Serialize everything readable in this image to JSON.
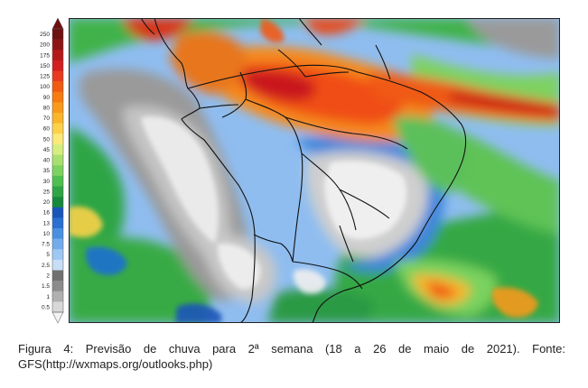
{
  "legend": {
    "levels": [
      {
        "label": "250",
        "color": "#6e1010"
      },
      {
        "label": "200",
        "color": "#8e1414"
      },
      {
        "label": "175",
        "color": "#b51818"
      },
      {
        "label": "150",
        "color": "#d21f1f"
      },
      {
        "label": "125",
        "color": "#e83a1f"
      },
      {
        "label": "100",
        "color": "#f25a12"
      },
      {
        "label": "90",
        "color": "#f77b10"
      },
      {
        "label": "80",
        "color": "#fa9a1a"
      },
      {
        "label": "70",
        "color": "#fbb52a"
      },
      {
        "label": "60",
        "color": "#fdd24a"
      },
      {
        "label": "50",
        "color": "#fbe97a"
      },
      {
        "label": "45",
        "color": "#d6ee80"
      },
      {
        "label": "40",
        "color": "#a8e070"
      },
      {
        "label": "35",
        "color": "#7dd260"
      },
      {
        "label": "30",
        "color": "#4fbf4f"
      },
      {
        "label": "25",
        "color": "#2ea545"
      },
      {
        "label": "20",
        "color": "#168a3a"
      },
      {
        "label": "16",
        "color": "#1a55b8"
      },
      {
        "label": "13",
        "color": "#2a70d0"
      },
      {
        "label": "10",
        "color": "#4a90e0"
      },
      {
        "label": "7.5",
        "color": "#72acec"
      },
      {
        "label": "5",
        "color": "#9ec8f4"
      },
      {
        "label": "2.5",
        "color": "#c8def6"
      },
      {
        "label": "2",
        "color": "#707070"
      },
      {
        "label": "1.5",
        "color": "#8c8c8c"
      },
      {
        "label": "1",
        "color": "#b0b0b0"
      },
      {
        "label": "0.5",
        "color": "#d8d8d8"
      }
    ]
  },
  "caption": {
    "text": "Figura 4: Previsão de chuva para 2ª semana (18 a 26 de maio de 2021). Fonte: GFS(http://wxmaps.org/outlooks.php)"
  }
}
